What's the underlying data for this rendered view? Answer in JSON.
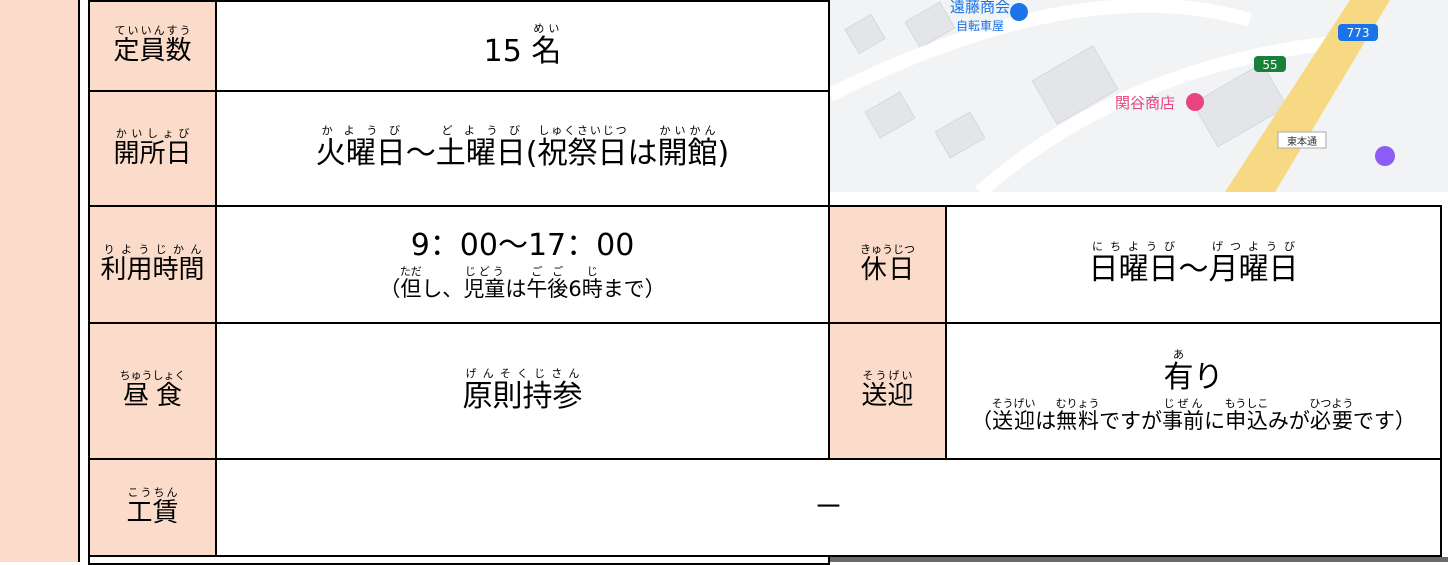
{
  "fields": [
    {
      "label": [
        [
          {
            "base": "定員数",
            "ruby": "ていいんすう"
          }
        ]
      ],
      "value": [
        [
          "15 ",
          {
            "base": "名",
            "ruby": "めい"
          }
        ]
      ]
    },
    {
      "label": [
        [
          {
            "base": "開所日",
            "ruby": "かいしょび"
          }
        ]
      ],
      "value": [
        [
          {
            "base": "火曜日",
            "ruby": "かようび"
          },
          "～",
          {
            "base": "土曜日",
            "ruby": "どようび"
          },
          "(",
          {
            "base": "祝祭日",
            "ruby": "しゅくさいじつ"
          },
          "は",
          {
            "base": "開館",
            "ruby": "かいかん"
          },
          ")"
        ]
      ]
    },
    {
      "label": [
        [
          {
            "base": "利用時間",
            "ruby": "りようじかん"
          }
        ]
      ],
      "value": [
        [
          "9：00～17：00"
        ],
        [
          "（",
          {
            "base": "但",
            "ruby": "ただ"
          },
          "し、",
          {
            "base": "児童",
            "ruby": "じどう"
          },
          "は",
          {
            "base": "午後",
            "ruby": "ごご"
          },
          "6",
          {
            "base": "時",
            "ruby": "じ"
          },
          "まで）"
        ]
      ]
    },
    {
      "label": [
        [
          {
            "base": "休日",
            "ruby": "きゅうじつ"
          }
        ]
      ],
      "value": [
        [
          {
            "base": "日曜日",
            "ruby": "にちようび"
          },
          "～",
          {
            "base": "月曜日",
            "ruby": "げつようび"
          }
        ]
      ]
    },
    {
      "label": [
        [
          {
            "base": "昼食",
            "ruby": "ちゅうしょく"
          }
        ]
      ],
      "value": [
        [
          {
            "base": "原則持参",
            "ruby": "げんそくじさん"
          }
        ]
      ]
    },
    {
      "label": [
        [
          {
            "base": "送迎",
            "ruby": "そうげい"
          }
        ]
      ],
      "value": [
        [
          {
            "base": "有",
            "ruby": "あ"
          },
          "り"
        ],
        [
          "（",
          {
            "base": "送迎",
            "ruby": "そうげい"
          },
          "は",
          {
            "base": "無料",
            "ruby": "むりょう"
          },
          "ですが",
          {
            "base": "事前",
            "ruby": "じぜん"
          },
          "に",
          {
            "base": "申込",
            "ruby": "もうしこ"
          },
          "みが",
          {
            "base": "必要",
            "ruby": "ひつよう"
          },
          "です）"
        ]
      ]
    },
    {
      "label": [
        [
          {
            "base": "工賃",
            "ruby": "こうちん"
          }
        ]
      ],
      "value": [
        [
          "－"
        ]
      ]
    }
  ],
  "map": {
    "labels": [
      "遠藤商会",
      "自転車屋",
      "773",
      "55",
      "関谷商店",
      "東本通"
    ]
  }
}
